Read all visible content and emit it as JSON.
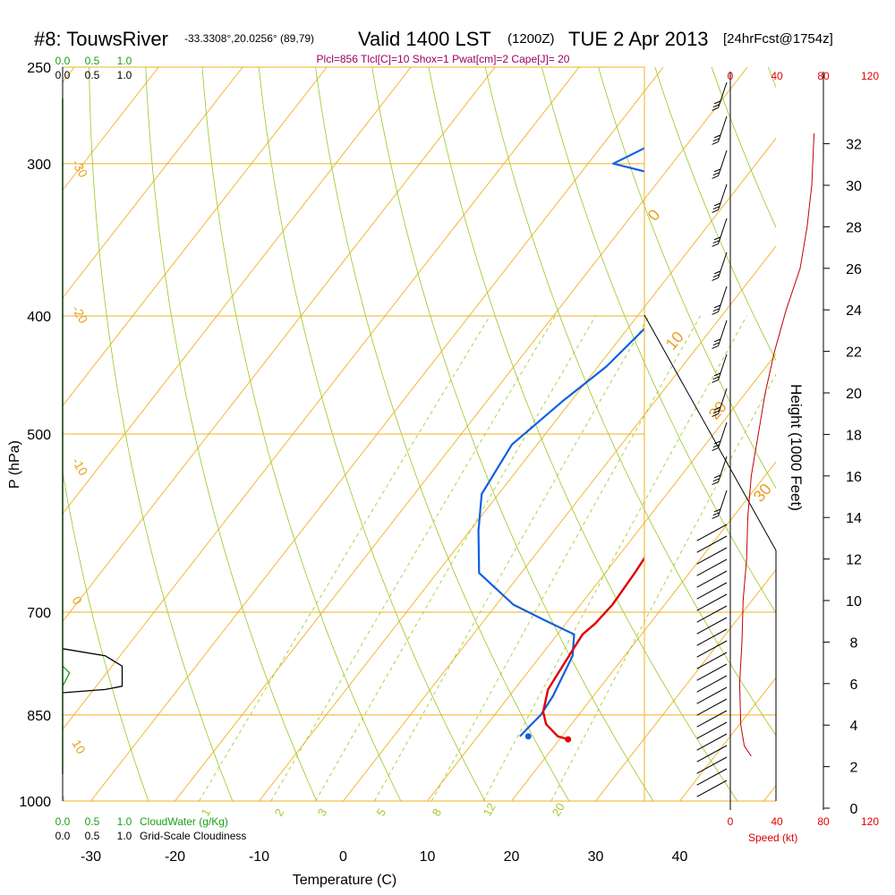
{
  "header": {
    "station": "#8: TouwsRiver",
    "location": "-33.3308°,20.0256° (89,79)",
    "valid": "Valid 1400 LST",
    "zulu": "(1200Z)",
    "date": "TUE 2 Apr 2013",
    "forecast": "[24hrFcst@1754z]",
    "indices": "Plcl=856 Tlcl[C]=10 Shox=1 Pwat[cm]=2 Cape[J]= 20"
  },
  "colors": {
    "temperature": "#e00000",
    "dewpoint": "#1060e0",
    "isobar": "#f0b020",
    "isotherm": "#f0b020",
    "dry_adiabat": "#98c820",
    "mixing_ratio": "#98c820",
    "parcel": "#800080",
    "cloud_water": "#1aa01a",
    "speed": "#c00000"
  },
  "chart_data": [
    {
      "type": "line",
      "name": "skew-t-sounding",
      "xlabel": "Temperature (C)",
      "ylabel": "P (hPa)",
      "xlim": [
        -35,
        47
      ],
      "ylim": [
        1000,
        250
      ],
      "x_ticks": [
        -30,
        -20,
        -10,
        0,
        10,
        20,
        30,
        40
      ],
      "y_ticks": [
        250,
        300,
        400,
        500,
        700,
        850,
        1000
      ],
      "skewed_isotherm_labels": [
        "-30",
        "-20",
        "-10",
        "0",
        "10",
        "20",
        "30"
      ],
      "mixing_ratio_labels": [
        "1",
        "2",
        "3",
        "5",
        "8",
        "12",
        "20"
      ],
      "series": [
        {
          "key": "temperature",
          "x": [
            21,
            19.5,
            17,
            15.5,
            14,
            13.5,
            13,
            13.5,
            13.8,
            13.5,
            13,
            12,
            10.5,
            8.5,
            7,
            5.5,
            4.5,
            3.8,
            3.2,
            2.8,
            2.8,
            3.2,
            3.8,
            4
          ],
          "y": [
            890,
            885,
            865,
            845,
            810,
            770,
            730,
            715,
            690,
            650,
            610,
            570,
            530,
            500,
            470,
            440,
            410,
            380,
            350,
            330,
            310,
            290,
            270,
            262
          ]
        },
        {
          "key": "dewpoint",
          "x": [
            15,
            15.2,
            15.5,
            15.2,
            14.5,
            13.8,
            12,
            7,
            2,
            -5,
            -9,
            -12,
            -13,
            -11,
            -9,
            -8,
            -7.5,
            -8,
            -10,
            -15,
            -22,
            -27,
            -23,
            -20
          ],
          "y": [
            885,
            870,
            850,
            820,
            790,
            760,
            730,
            710,
            690,
            650,
            600,
            560,
            510,
            470,
            440,
            410,
            400,
            370,
            340,
            320,
            305,
            300,
            285,
            265
          ]
        },
        {
          "key": "parcel",
          "x": [
            4,
            4.8,
            5.4,
            6.2,
            7,
            7.5,
            8.2
          ],
          "y": [
            400,
            408,
            416,
            424,
            432,
            440,
            455
          ]
        }
      ]
    },
    {
      "type": "line",
      "name": "cloud-panel",
      "x_ticks_cloudwater": [
        "0.0",
        "0.5",
        "1.0"
      ],
      "x_ticks_cloudiness": [
        "0.0",
        "0.5",
        "1.0"
      ],
      "bottom_label_cloudwater": "CloudWater (g/Kg)",
      "bottom_label_cloudiness": "Grid-Scale Cloudiness",
      "series": [
        {
          "key": "cloudiness",
          "x": [
            0,
            0.25,
            0.35,
            0.35,
            0.25,
            0
          ],
          "y": [
            750,
            760,
            775,
            805,
            810,
            815
          ]
        },
        {
          "key": "cloud_water",
          "x": [
            0,
            0.04,
            0.02,
            0
          ],
          "y": [
            775,
            785,
            795,
            805
          ]
        }
      ]
    },
    {
      "type": "line",
      "name": "wind-speed",
      "xlabel": "Speed (kt)",
      "xlim": [
        0,
        120
      ],
      "x_ticks": [
        0,
        40,
        80,
        120
      ],
      "height_axis_label": "Height (1000 Feet)",
      "height_ticks": [
        0,
        2,
        4,
        6,
        8,
        10,
        12,
        14,
        16,
        18,
        20,
        22,
        24,
        26,
        28,
        30,
        32
      ],
      "series": [
        {
          "key": "speed",
          "x": [
            18,
            12,
            9,
            8,
            10,
            11,
            14,
            15,
            18,
            24,
            30,
            38,
            48,
            60,
            66,
            70,
            72
          ],
          "y": [
            2.5,
            3,
            4,
            6,
            8,
            10,
            12,
            14,
            16,
            18,
            20,
            22,
            24,
            26,
            28,
            30,
            32.5
          ]
        }
      ]
    }
  ]
}
